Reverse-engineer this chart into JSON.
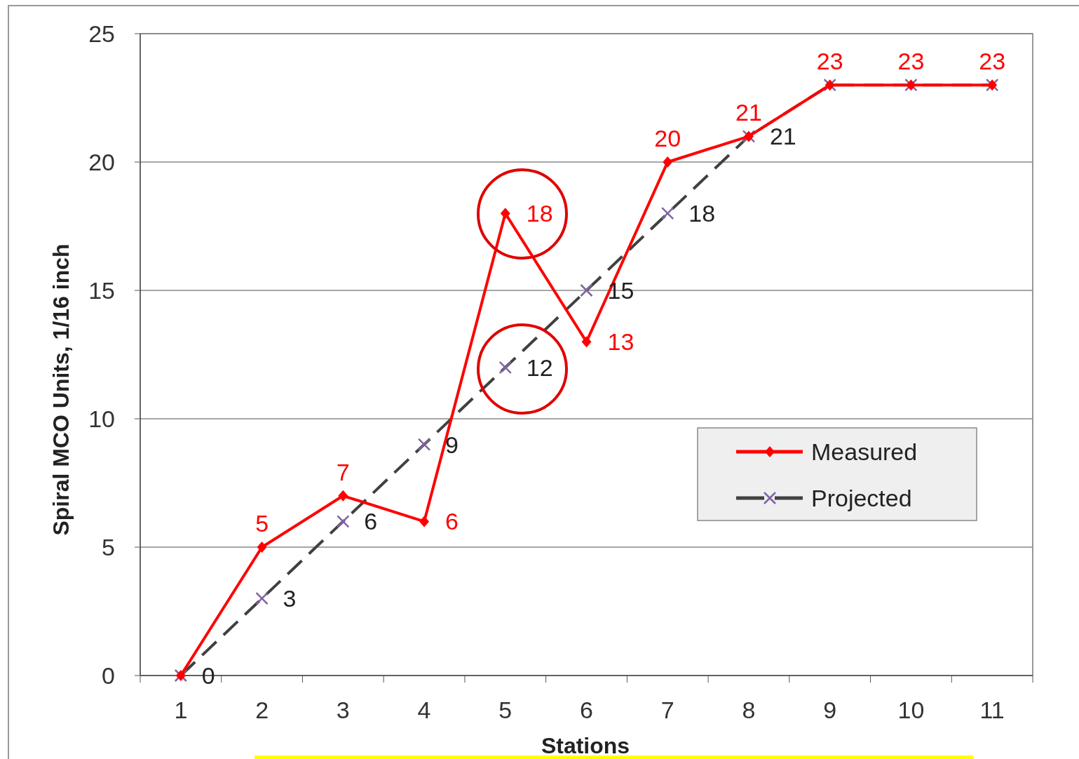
{
  "chart_data": {
    "type": "line",
    "xlabel": "Stations",
    "ylabel": "Spiral MCO Units,  1/16 inch",
    "categories": [
      "1",
      "2",
      "3",
      "4",
      "5",
      "6",
      "7",
      "8",
      "9",
      "10",
      "11"
    ],
    "ylim": [
      0,
      25
    ],
    "yticks": [
      0,
      5,
      10,
      15,
      20,
      25
    ],
    "grid": "y",
    "legend": "right",
    "series": [
      {
        "name": "Measured",
        "color": "#ff0000",
        "marker": "diamond",
        "line_style": "solid",
        "values": [
          0,
          5,
          7,
          6,
          18,
          13,
          20,
          21,
          23,
          23,
          23
        ],
        "value_labels": [
          null,
          "5",
          "7",
          "6",
          "18",
          "13",
          "20",
          "21",
          "23",
          "23",
          "23"
        ]
      },
      {
        "name": "Projected",
        "color": "#404040",
        "marker": "cross",
        "line_style": "dashed",
        "values": [
          0,
          3,
          6,
          9,
          12,
          15,
          18,
          21,
          23,
          23,
          23
        ],
        "value_labels": [
          "0",
          "3",
          "6",
          "9",
          "12",
          "15",
          "18",
          "21",
          null,
          null,
          null
        ]
      }
    ]
  }
}
